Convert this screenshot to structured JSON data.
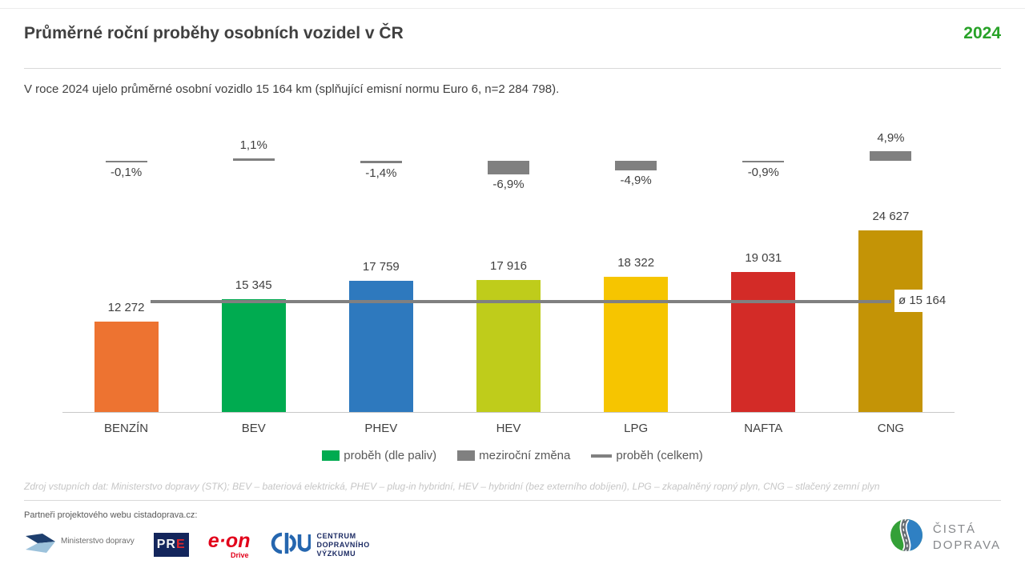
{
  "header": {
    "title": "Průměrné roční proběhy osobních vozidel v ČR",
    "year": "2024"
  },
  "subtitle": "V roce 2024 ujelo průměrné osobní vozidlo 15 164 km (splňující emisní normu Euro 6, n=2 284 798).",
  "chart_data": {
    "type": "bar",
    "categories": [
      "BENZÍN",
      "BEV",
      "PHEV",
      "HEV",
      "LPG",
      "NAFTA",
      "CNG"
    ],
    "colors": [
      "#ED7331",
      "#00AB50",
      "#2E79BE",
      "#BFCC1B",
      "#F6C500",
      "#D32B27",
      "#C49406"
    ],
    "change_color": "#808080",
    "series": [
      {
        "name": "proběh (dle paliv)",
        "unit": "km",
        "values": [
          12272,
          15345,
          17759,
          17916,
          18322,
          19031,
          24627
        ],
        "labels": [
          "12 272",
          "15 345",
          "17 759",
          "17 916",
          "18 322",
          "19 031",
          "24 627"
        ]
      },
      {
        "name": "meziroční změna",
        "unit": "%",
        "values": [
          -0.1,
          1.1,
          -1.4,
          -6.9,
          -4.9,
          -0.9,
          4.9
        ],
        "labels": [
          "-0,1%",
          "1,1%",
          "-1,4%",
          "-6,9%",
          "-4,9%",
          "-0,9%",
          "4,9%"
        ]
      }
    ],
    "average_line": {
      "name": "proběh (celkem)",
      "value": 15164,
      "label": "ø 15 164"
    },
    "legend": [
      {
        "label": "proběh (dle paliv)",
        "swatch": "rect",
        "color": "#00AB50"
      },
      {
        "label": "meziroční změna",
        "swatch": "rect",
        "color": "#808080"
      },
      {
        "label": "proběh (celkem)",
        "swatch": "line",
        "color": "#808080"
      }
    ],
    "ylim": [
      0,
      26000
    ],
    "grid": false,
    "legend_position": "bottom"
  },
  "footnote": "Zdroj vstupních dat: Ministerstvo dopravy (STK); BEV – bateriová elektrická, PHEV – plug-in hybridní, HEV – hybridní (bez externího dobíjení), LPG – zkapalněný ropný plyn, CNG – stlačený zemní plyn",
  "footer": {
    "partners_label": "Partneři projektového webu cistadoprava.cz:",
    "ministerstvo_label": "Ministerstvo dopravy",
    "pre": {
      "letters_white": "PR",
      "letter_red": "E"
    },
    "eon": {
      "main": "e·on",
      "sub": "Drive"
    },
    "cdv_lines": [
      "CENTRUM",
      "DOPRAVNÍHO",
      "VÝZKUMU"
    ],
    "brand_lines": [
      "ČISTÁ",
      "DOPRAVA"
    ]
  }
}
